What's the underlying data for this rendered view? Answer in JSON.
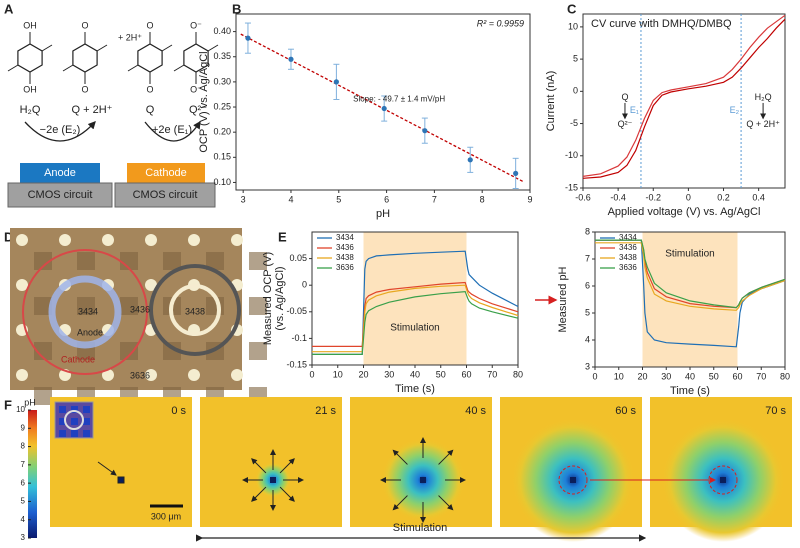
{
  "chart_data": [
    {
      "type": "scatter",
      "x": [
        3.1,
        4.0,
        4.95,
        5.95,
        6.8,
        7.75,
        8.7
      ],
      "values": [
        0.387,
        0.345,
        0.3,
        0.247,
        0.203,
        0.145,
        0.118
      ],
      "errors": [
        0.03,
        0.02,
        0.035,
        0.025,
        0.025,
        0.025,
        0.03
      ],
      "color": "#2e75b6",
      "fit": {
        "x": [
          2.95,
          8.85
        ],
        "y": [
          0.395,
          0.102
        ],
        "color": "#c00000"
      },
      "xlim": [
        2.85,
        9.0
      ],
      "ylim": [
        0.085,
        0.435
      ],
      "xticks": [
        3,
        4,
        5,
        6,
        7,
        8,
        9
      ],
      "yticks": [
        {
          "value": 0.1,
          "label": "0.10"
        },
        0.15,
        {
          "value": 0.2,
          "label": "0.20"
        },
        0.25,
        {
          "value": 0.3,
          "label": "0.30"
        },
        0.35,
        {
          "value": 0.4,
          "label": "0.40"
        }
      ],
      "xlabel": "pH",
      "ylabel": "OCP (V) vs. Ag/AgCl",
      "annotations": [
        "R² = 0.9959",
        "Slope: - 49.7 ± 1.4 mV/pH"
      ]
    },
    {
      "type": "line",
      "title": "CV curve with DMHQ/DMBQ",
      "x": [
        -0.6,
        -0.5,
        -0.4,
        -0.35,
        -0.3,
        -0.25,
        -0.2,
        -0.15,
        -0.1,
        0,
        0.1,
        0.2,
        0.25,
        0.3,
        0.35,
        0.4,
        0.45,
        0.5,
        0.55
      ],
      "series": [
        {
          "color": "#c00000",
          "values": [
            -13.5,
            -13.3,
            -12.6,
            -11.5,
            -9.2,
            -5.5,
            -2.2,
            -0.6,
            -0.1,
            0.4,
            0.8,
            1.4,
            2.2,
            3.6,
            5.2,
            6.8,
            8.2,
            9.8,
            11.2
          ]
        },
        {
          "color": "#d9383a",
          "values": [
            -13.2,
            -12.8,
            -11.6,
            -10.2,
            -7.6,
            -4.2,
            -1.4,
            -0.2,
            0.2,
            0.7,
            1.2,
            2.2,
            3.4,
            5.0,
            6.8,
            8.4,
            9.8,
            10.8,
            11.8
          ]
        }
      ],
      "xlim": [
        -0.6,
        0.55
      ],
      "ylim": [
        -15,
        12
      ],
      "xticks": [
        -0.6,
        -0.4,
        -0.2,
        0,
        0.2,
        0.4
      ],
      "yticks": [
        -15,
        -10,
        -5,
        0,
        5,
        10
      ],
      "xlabel": "Applied voltage (V) vs. Ag/AgCl",
      "ylabel": "Current (nA)",
      "vlines": [
        {
          "x": -0.27,
          "label": "E₁",
          "note": [
            "Q",
            "Q²⁻"
          ]
        },
        {
          "x": 0.3,
          "label": "E₂",
          "note": [
            "H₂Q",
            "Q + 2H⁺"
          ]
        }
      ],
      "vline_color": "#5b9bd5"
    },
    {
      "type": "line",
      "x": [
        0,
        19.5,
        20.5,
        21,
        22,
        25,
        30,
        40,
        50,
        59.5,
        60.5,
        61,
        62,
        65,
        70,
        80
      ],
      "series": [
        {
          "name": "3434",
          "color": "#1f6fb5",
          "values": [
            -0.13,
            -0.13,
            0.03,
            0.045,
            0.05,
            0.055,
            0.057,
            0.06,
            0.062,
            0.064,
            0.03,
            0.02,
            0.015,
            0.0,
            -0.015,
            -0.04
          ]
        },
        {
          "name": "3436",
          "color": "#e0452b",
          "values": [
            -0.115,
            -0.115,
            -0.04,
            -0.025,
            -0.02,
            -0.013,
            -0.008,
            -0.003,
            0.002,
            0.005,
            -0.01,
            -0.013,
            -0.017,
            -0.025,
            -0.035,
            -0.05
          ]
        },
        {
          "name": "3438",
          "color": "#e8a820",
          "values": [
            -0.125,
            -0.125,
            -0.05,
            -0.035,
            -0.028,
            -0.02,
            -0.013,
            -0.006,
            -0.002,
            0.0,
            -0.015,
            -0.02,
            -0.025,
            -0.033,
            -0.042,
            -0.057
          ]
        },
        {
          "name": "3636",
          "color": "#3aa04a",
          "values": [
            -0.13,
            -0.13,
            -0.07,
            -0.055,
            -0.048,
            -0.04,
            -0.032,
            -0.022,
            -0.016,
            -0.012,
            -0.025,
            -0.03,
            -0.035,
            -0.043,
            -0.05,
            -0.062
          ]
        }
      ],
      "xlim": [
        0,
        80
      ],
      "ylim": [
        -0.15,
        0.1
      ],
      "xticks": [
        0,
        10,
        20,
        30,
        40,
        50,
        60,
        70,
        80
      ],
      "yticks": [
        -0.15,
        -0.1,
        -0.05,
        0,
        0.05
      ],
      "xlabel": "Time (s)",
      "ylabel": "Measured OCP (V)",
      "ylabel2": "(vs. Ag/AgCl)",
      "shade": [
        20,
        60
      ],
      "shade_label": "Stimulation",
      "shade_color": "#fde3bd",
      "legend": "upper left"
    },
    {
      "type": "line",
      "x": [
        0,
        19.5,
        20.5,
        21,
        22,
        25,
        30,
        40,
        50,
        59.5,
        60.5,
        61,
        62,
        65,
        70,
        80
      ],
      "series": [
        {
          "name": "3434",
          "color": "#1f6fb5",
          "values": [
            7.7,
            7.7,
            6,
            5,
            4.3,
            4.0,
            3.9,
            3.85,
            3.8,
            3.75,
            4.5,
            5.0,
            5.4,
            5.7,
            5.9,
            6.2
          ]
        },
        {
          "name": "3436",
          "color": "#e0452b",
          "values": [
            7.7,
            7.7,
            7.3,
            6.9,
            6.5,
            5.9,
            5.6,
            5.35,
            5.25,
            5.2,
            5.3,
            5.4,
            5.55,
            5.75,
            5.95,
            6.25
          ]
        },
        {
          "name": "3438",
          "color": "#e8a820",
          "values": [
            7.6,
            7.6,
            7.1,
            6.7,
            6.3,
            5.7,
            5.45,
            5.25,
            5.15,
            5.1,
            5.2,
            5.3,
            5.45,
            5.65,
            5.9,
            6.2
          ]
        },
        {
          "name": "3636",
          "color": "#3aa04a",
          "values": [
            7.7,
            7.7,
            7.35,
            7.0,
            6.7,
            6.1,
            5.75,
            5.45,
            5.3,
            5.2,
            5.3,
            5.4,
            5.55,
            5.75,
            5.95,
            6.25
          ]
        }
      ],
      "xlim": [
        0,
        80
      ],
      "ylim": [
        3,
        8
      ],
      "xticks": [
        0,
        10,
        20,
        30,
        40,
        50,
        60,
        70,
        80
      ],
      "yticks": [
        3,
        4,
        5,
        6,
        7,
        8
      ],
      "xlabel": "Time (s)",
      "ylabel": "Measured pH",
      "shade": [
        20,
        60
      ],
      "shade_label": "Stimulation",
      "shade_color": "#fde3bd",
      "legend": "upper left"
    }
  ],
  "panels": {
    "letters": [
      "A",
      "B",
      "C",
      "D",
      "E",
      "F"
    ],
    "a": {
      "molecules": [
        [
          "OH",
          "OH"
        ],
        [
          "O",
          "O"
        ],
        [
          "O",
          "O"
        ],
        [
          "O⁻",
          "O⁻"
        ]
      ],
      "plus": "+ 2H⁺",
      "species": [
        "H₂Q",
        "Q + 2H⁺",
        "Q",
        "Q²⁻"
      ],
      "reactions": [
        "−2e (E₂)",
        "+2e (E₁)"
      ],
      "electrodes": [
        "Anode",
        "Cathode"
      ],
      "circuit": [
        "CMOS circuit",
        "CMOS circuit"
      ]
    },
    "d": {
      "pixels": [
        "3434",
        "3436",
        "3438",
        "3636"
      ],
      "electrodes": [
        "Anode",
        "Cathode"
      ]
    },
    "f": {
      "colorbar": {
        "label": "pH",
        "lim": [
          3,
          10
        ],
        "ticks": [
          3,
          4,
          5,
          6,
          7,
          8,
          9,
          10
        ]
      },
      "times": [
        "0 s",
        "21 s",
        "40 s",
        "60 s",
        "70 s"
      ],
      "scale": "300 μm",
      "stimulation": "Stimulation"
    }
  }
}
